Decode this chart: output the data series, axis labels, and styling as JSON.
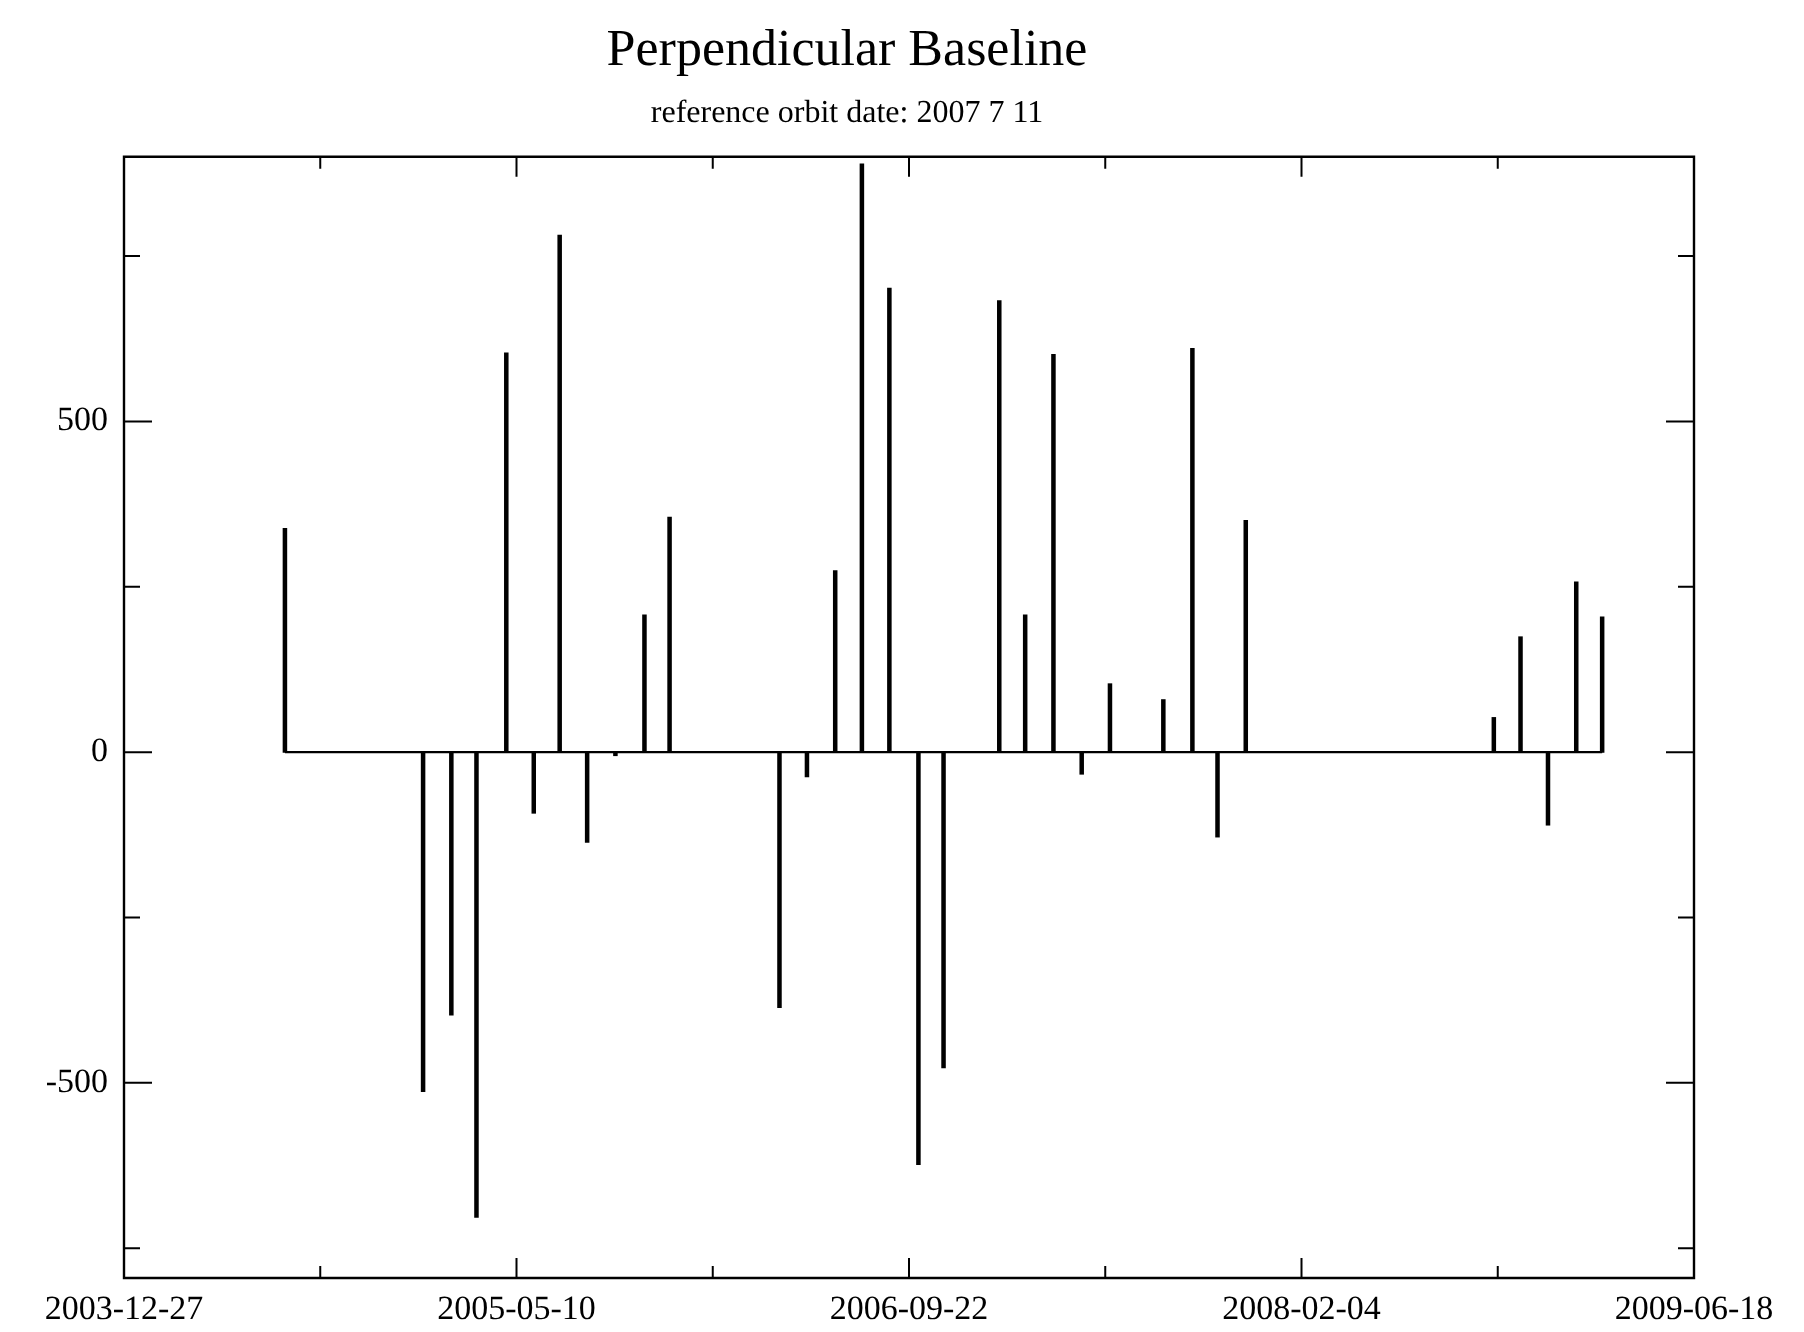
{
  "chart_data": {
    "type": "bar",
    "title": "Perpendicular Baseline",
    "subtitle": "reference orbit date: 2007 7 11",
    "x": [
      "2004-07-19",
      "2005-01-11",
      "2005-02-16",
      "2005-03-20",
      "2005-04-27",
      "2005-06-01",
      "2005-07-04",
      "2005-08-08",
      "2005-09-13",
      "2005-10-20",
      "2005-11-21",
      "2006-04-10",
      "2006-05-15",
      "2006-06-20",
      "2006-07-24",
      "2006-08-28",
      "2006-10-04",
      "2006-11-05",
      "2007-01-15",
      "2007-02-17",
      "2007-03-25",
      "2007-04-30",
      "2007-06-05",
      "2007-08-12",
      "2007-09-18",
      "2007-10-20",
      "2007-11-25",
      "2008-10-06",
      "2008-11-09",
      "2008-12-14",
      "2009-01-19",
      "2009-02-21"
    ],
    "values": [
      338,
      -513,
      -397,
      -703,
      603,
      -92,
      781,
      -136,
      -5,
      207,
      355,
      -386,
      -37,
      274,
      889,
      701,
      -623,
      -477,
      682,
      207,
      601,
      -33,
      103,
      79,
      610,
      -128,
      350,
      52,
      174,
      -110,
      257,
      204
    ],
    "color": "#000000",
    "xlim": [
      "2003-12-27",
      "2009-06-18"
    ],
    "xticks": [
      "2003-12-27",
      {
        "value": "2004-09-02",
        "label": null
      },
      "2005-05-10",
      {
        "value": "2006-01-15",
        "label": null
      },
      "2006-09-22",
      {
        "value": "2007-05-30",
        "label": null
      },
      "2008-02-04",
      {
        "value": "2008-10-11",
        "label": null
      },
      "2009-06-18"
    ],
    "ylim": [
      -795,
      900
    ],
    "yticks": [
      {
        "value": -750,
        "label": null
      },
      -500,
      {
        "value": -250,
        "label": null
      },
      0,
      {
        "value": 250,
        "label": null
      },
      500,
      {
        "value": 750,
        "label": null
      }
    ],
    "ref_lines": [
      {
        "axis": "y",
        "value": 0,
        "label": null,
        "color": "#000000"
      }
    ],
    "grid": false,
    "legend": false
  }
}
